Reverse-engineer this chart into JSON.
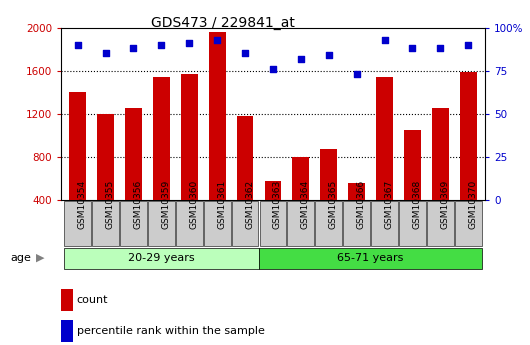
{
  "title": "GDS473 / 229841_at",
  "samples": [
    "GSM10354",
    "GSM10355",
    "GSM10356",
    "GSM10359",
    "GSM10360",
    "GSM10361",
    "GSM10362",
    "GSM10363",
    "GSM10364",
    "GSM10365",
    "GSM10366",
    "GSM10367",
    "GSM10368",
    "GSM10369",
    "GSM10370"
  ],
  "counts": [
    1400,
    1200,
    1250,
    1540,
    1570,
    1960,
    1180,
    580,
    800,
    870,
    560,
    1540,
    1050,
    1250,
    1590
  ],
  "percentiles": [
    90,
    85,
    88,
    90,
    91,
    93,
    85,
    76,
    82,
    84,
    73,
    93,
    88,
    88,
    90
  ],
  "group1_label": "20-29 years",
  "group1_count": 7,
  "group2_label": "65-71 years",
  "group2_count": 8,
  "group1_color": "#BBFFBB",
  "group2_color": "#44DD44",
  "bar_color": "#CC0000",
  "dot_color": "#0000CC",
  "ylim_left": [
    400,
    2000
  ],
  "ylim_right": [
    0,
    100
  ],
  "yticks_left": [
    400,
    800,
    1200,
    1600,
    2000
  ],
  "yticks_right": [
    0,
    25,
    50,
    75,
    100
  ],
  "grid_values": [
    800,
    1200,
    1600
  ],
  "tick_area_color": "#CCCCCC",
  "age_label": "age",
  "legend_count": "count",
  "legend_percentile": "percentile rank within the sample"
}
